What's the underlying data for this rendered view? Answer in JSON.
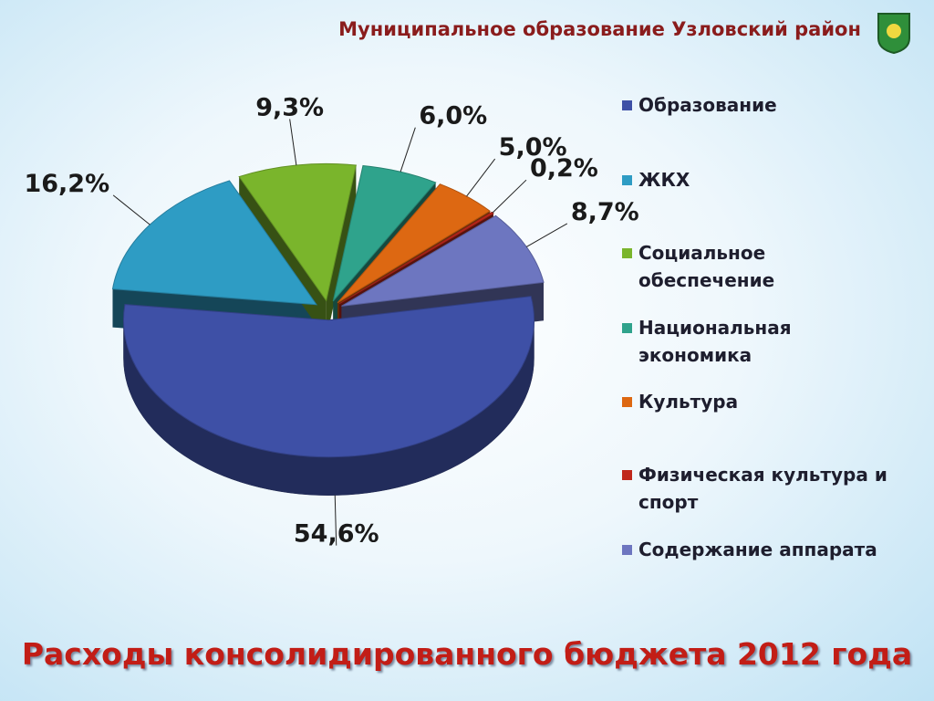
{
  "header": "Муниципальное образование Узловский район",
  "chart_data": {
    "type": "pie",
    "title": "Расходы консолидированного бюджета 2012 года",
    "categories": [
      "Образование",
      "ЖКХ",
      "Социальное обеспечение",
      "Национальная экономика",
      "Культура",
      "Физическая культура и спорт",
      "Содержание аппарата"
    ],
    "values": [
      54.6,
      16.2,
      9.3,
      6.0,
      5.0,
      0.2,
      8.7
    ],
    "value_labels": [
      "54,6%",
      "16,2%",
      "9,3%",
      "6,0%",
      "5,0%",
      "0,2%",
      "8,7%"
    ],
    "colors": [
      "#3e50a6",
      "#2e9cc4",
      "#7ab52c",
      "#2fa38c",
      "#dd6812",
      "#c0281c",
      "#6d76c0"
    ],
    "legend": "right"
  }
}
